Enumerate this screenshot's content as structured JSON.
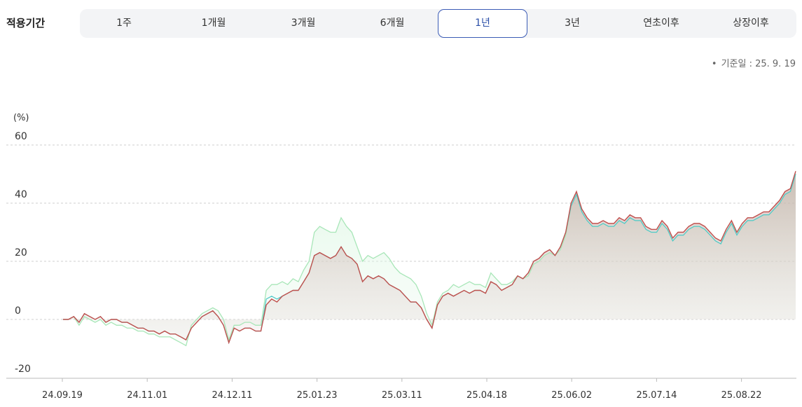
{
  "period_selector": {
    "label": "적용기간",
    "tabs": [
      {
        "label": "1주",
        "active": false
      },
      {
        "label": "1개월",
        "active": false
      },
      {
        "label": "3개월",
        "active": false
      },
      {
        "label": "6개월",
        "active": false
      },
      {
        "label": "1년",
        "active": true
      },
      {
        "label": "3년",
        "active": false
      },
      {
        "label": "연초이후",
        "active": false
      },
      {
        "label": "상장이후",
        "active": false
      }
    ]
  },
  "base_date": {
    "bullet": "•",
    "text": "기준일 : 25. 9. 19"
  },
  "colors": {
    "accent": "#2b4fa8",
    "series_main": "#c0504d",
    "series_compare": "#a8e6b8",
    "series_third": "#4fc8c8"
  },
  "chart_data": {
    "type": "area",
    "y_unit_label": "(%)",
    "ylim": [
      -20,
      60
    ],
    "yticks": [
      60,
      40,
      20,
      0,
      -20
    ],
    "x_tick_labels": [
      "24.09.19",
      "24.11.01",
      "24.12.11",
      "25.01.23",
      "25.03.11",
      "25.04.18",
      "25.06.02",
      "25.07.14",
      "25.08.22"
    ],
    "grid": true,
    "legend": "none",
    "series": [
      {
        "values": [
          0,
          0,
          1,
          -1,
          2,
          1,
          0,
          1,
          -1,
          0,
          0,
          -1,
          -1,
          -2,
          -3,
          -3,
          -4,
          -4,
          -5,
          -4,
          -5,
          -5,
          -6,
          -7,
          -3,
          -1,
          1,
          2,
          3,
          1,
          -2,
          -8,
          -3,
          -4,
          -3,
          -3,
          -4,
          -4,
          5,
          7,
          6,
          8,
          9,
          10,
          10,
          13,
          16,
          22,
          23,
          22,
          21,
          22,
          25,
          22,
          21,
          19,
          13,
          15,
          14,
          15,
          14,
          12,
          11,
          10,
          8,
          6,
          6,
          4,
          0,
          -3,
          5,
          8,
          9,
          8,
          9,
          10,
          9,
          10,
          10,
          9,
          13,
          12,
          10,
          11,
          12,
          15,
          14,
          16,
          20,
          21,
          23,
          24,
          22,
          25,
          30,
          40,
          44,
          38,
          35,
          33,
          33,
          34,
          33,
          33,
          35,
          34,
          36,
          35,
          35,
          32,
          31,
          31,
          34,
          32,
          28,
          30,
          30,
          32,
          33,
          33,
          32,
          30,
          28,
          27,
          31,
          34,
          30,
          33,
          35,
          35,
          36,
          37,
          37,
          39,
          41,
          44,
          45,
          51
        ]
      },
      {
        "values": [
          0,
          0,
          1,
          -2,
          1,
          0,
          -1,
          0,
          -2,
          -1,
          -2,
          -2,
          -3,
          -3,
          -4,
          -4,
          -5,
          -5,
          -6,
          -6,
          -6,
          -7,
          -8,
          -9,
          -2,
          0,
          2,
          3,
          4,
          3,
          0,
          -7,
          -2,
          -2,
          -1,
          -1,
          -2,
          -2,
          10,
          12,
          12,
          13,
          12,
          14,
          13,
          17,
          20,
          30,
          32,
          31,
          30,
          30,
          35,
          32,
          30,
          25,
          20,
          22,
          21,
          22,
          23,
          21,
          18,
          16,
          15,
          14,
          12,
          8,
          2,
          -2,
          6,
          9,
          10,
          12,
          11,
          12,
          13,
          12,
          12,
          11,
          16,
          14,
          12,
          12,
          13,
          15,
          14,
          15,
          19,
          20,
          22,
          23,
          22,
          24,
          29,
          39,
          43,
          37,
          34,
          32,
          32,
          33,
          32,
          32,
          34,
          33,
          35,
          34,
          34,
          31,
          30,
          30,
          33,
          31,
          27,
          29,
          29,
          31,
          32,
          32,
          31,
          29,
          27,
          26,
          30,
          33,
          30,
          32,
          34,
          34,
          35,
          36,
          36,
          38,
          40,
          43,
          44,
          50
        ]
      },
      {
        "values": [
          0,
          0,
          1,
          -1,
          2,
          1,
          0,
          1,
          -1,
          0,
          0,
          -1,
          -1,
          -2,
          -3,
          -3,
          -4,
          -4,
          -5,
          -4,
          -5,
          -5,
          -6,
          -7,
          -3,
          -1,
          1,
          2,
          3,
          1,
          -2,
          -8,
          -3,
          -4,
          -3,
          -3,
          -4,
          -4,
          7,
          8,
          7,
          8,
          9,
          10,
          10,
          13,
          16,
          22,
          23,
          22,
          21,
          22,
          25,
          22,
          21,
          19,
          13,
          15,
          14,
          15,
          14,
          12,
          11,
          10,
          8,
          6,
          6,
          4,
          0,
          -3,
          5,
          8,
          9,
          8,
          9,
          10,
          9,
          10,
          10,
          9,
          13,
          12,
          10,
          11,
          12,
          15,
          14,
          16,
          20,
          21,
          23,
          24,
          22,
          25,
          30,
          39,
          43,
          37,
          34,
          32,
          32,
          33,
          32,
          32,
          34,
          33,
          35,
          34,
          34,
          31,
          30,
          30,
          33,
          31,
          27,
          29,
          29,
          31,
          32,
          32,
          31,
          29,
          27,
          26,
          30,
          33,
          29,
          32,
          34,
          34,
          35,
          36,
          36,
          38,
          40,
          43,
          44,
          50
        ]
      }
    ]
  }
}
